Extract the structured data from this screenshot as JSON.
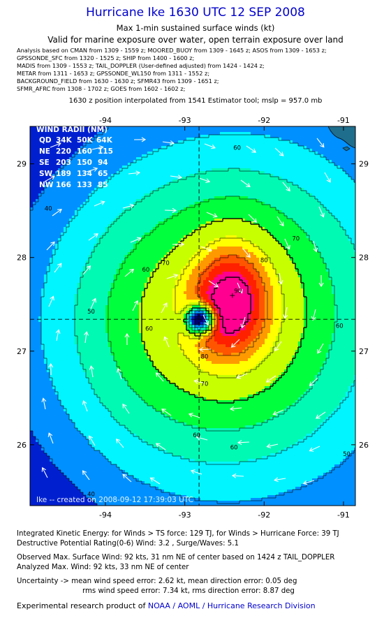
{
  "header": {
    "title": "Hurricane Ike 1630 UTC 12 SEP 2008",
    "subtitle": "Max 1-min sustained surface winds (kt)",
    "valid_note": "Valid for marine exposure over water, open terrain exposure over land",
    "analysis_lines": [
      "Analysis based on  CMAN from 1309 - 1559 z;  MOORED_BUOY from 1309 - 1645 z;  ASOS from 1309 - 1653 z;",
      "GPSSONDE_SFC from 1320 - 1525 z;  SHIP from 1400 - 1600 z;",
      "MADIS from 1309 - 1553 z;  TAIL_DOPPLER (User-defined adjusted) from 1424 - 1424 z;",
      "METAR from 1311 - 1653 z;  GPSSONDE_WL150 from 1311 - 1552 z;",
      "BACKGROUND_FIELD from 1630 - 1630 z;  SFMR43 from 1309 - 1651 z;",
      "SFMR_AFRC from 1308 - 1702 z;  GOES from 1602 - 1602 z;"
    ],
    "position_note": "1630 z position interpolated from 1541 Estimator tool; mslp = 957.0 mb"
  },
  "chart_data": {
    "type": "contour",
    "title": "Hurricane Ike 1630 UTC 12 SEP 2008",
    "subtitle": "Max 1-min sustained surface winds (kt)",
    "xlim": [
      -94.95,
      -90.85
    ],
    "ylim": [
      25.35,
      29.4
    ],
    "x_ticks": [
      -94,
      -93,
      -92,
      -91
    ],
    "y_ticks": [
      26,
      27,
      28,
      29
    ],
    "x_tick_labels": [
      "-94",
      "-93",
      "-92",
      "-91"
    ],
    "y_tick_labels": [
      "26",
      "27",
      "28",
      "29"
    ],
    "storm_center": {
      "lon": -92.82,
      "lat": 27.34
    },
    "max_wind": {
      "lon": -92.4,
      "lat": 27.6,
      "value": 92
    },
    "contour_levels": [
      10,
      20,
      30,
      40,
      50,
      60,
      70,
      80,
      90
    ],
    "color_bands": [
      {
        "min": 0,
        "max": 10,
        "color": "#00006e"
      },
      {
        "min": 10,
        "max": 20,
        "color": "#0020d0"
      },
      {
        "min": 20,
        "max": 30,
        "color": "#0090ff"
      },
      {
        "min": 30,
        "max": 40,
        "color": "#00f5ff"
      },
      {
        "min": 40,
        "max": 50,
        "color": "#00fab4"
      },
      {
        "min": 50,
        "max": 60,
        "color": "#00ff3c"
      },
      {
        "min": 60,
        "max": 70,
        "color": "#c8ff00"
      },
      {
        "min": 70,
        "max": 75,
        "color": "#ffff00"
      },
      {
        "min": 75,
        "max": 80,
        "color": "#ff9900"
      },
      {
        "min": 80,
        "max": 84,
        "color": "#ff5500"
      },
      {
        "min": 84,
        "max": 88,
        "color": "#ff2000"
      },
      {
        "min": 88,
        "max": 100,
        "color": "#ff0090"
      }
    ],
    "contour_labels": [
      {
        "lon": -94.72,
        "lat": 28.5,
        "text": "40"
      },
      {
        "lon": -94.18,
        "lat": 27.4,
        "text": "50"
      },
      {
        "lon": -92.34,
        "lat": 29.15,
        "text": "60"
      },
      {
        "lon": -93.49,
        "lat": 27.85,
        "text": "60"
      },
      {
        "lon": -93.45,
        "lat": 27.22,
        "text": "60"
      },
      {
        "lon": -92.85,
        "lat": 26.08,
        "text": "60"
      },
      {
        "lon": -92.38,
        "lat": 25.95,
        "text": "60"
      },
      {
        "lon": -91.05,
        "lat": 27.25,
        "text": "60"
      },
      {
        "lon": -93.24,
        "lat": 27.92,
        "text": "70"
      },
      {
        "lon": -91.6,
        "lat": 28.18,
        "text": "70"
      },
      {
        "lon": -92.75,
        "lat": 26.63,
        "text": "70"
      },
      {
        "lon": -92.0,
        "lat": 27.95,
        "text": "80"
      },
      {
        "lon": -92.75,
        "lat": 26.92,
        "text": "80"
      },
      {
        "lon": -92.33,
        "lat": 27.62,
        "text": "90"
      },
      {
        "lon": -94.18,
        "lat": 25.45,
        "text": "40"
      },
      {
        "lon": -90.96,
        "lat": 25.88,
        "text": "50"
      }
    ],
    "wind_radii": {
      "header": [
        "QD",
        "34K",
        "50K",
        "64K"
      ],
      "rows": [
        [
          "NE",
          "220",
          "160",
          "115"
        ],
        [
          "SE",
          "203",
          "150",
          "94"
        ],
        [
          "SW",
          "189",
          "134",
          "65"
        ],
        [
          "NW",
          "166",
          "133",
          "85"
        ]
      ]
    },
    "wind_radii_title": "WIND RADII (NM)",
    "credit": "Ike -- created on 2008-09-12  17:39:03 UTC"
  },
  "footer": {
    "ike_line": "Integrated Kinetic Energy:  for Winds > TS force: 129 TJ,  for Winds > Hurricane Force: 39 TJ",
    "dp_line": "Destructive Potential Rating(0-6)   Wind: 3.2 , Surge/Waves: 5.1",
    "observed_line": "Observed Max. Surface Wind: 92 kts, 31 nm NE of center based on 1424 z TAIL_DOPPLER",
    "analyzed_line": "Analyzed Max. Wind: 92 kts, 33 nm NE of center",
    "uncertainty_line1": "Uncertainty -> mean wind speed error: 2.62 kt,   mean direction error: 0.05 deg",
    "uncertainty_line2": "rms wind speed error: 7.34 kt,   rms direction error: 8.87 deg",
    "product_prefix": "Experimental research product of",
    "product_link": "NOAA / AOML / Hurricane Research Division"
  }
}
